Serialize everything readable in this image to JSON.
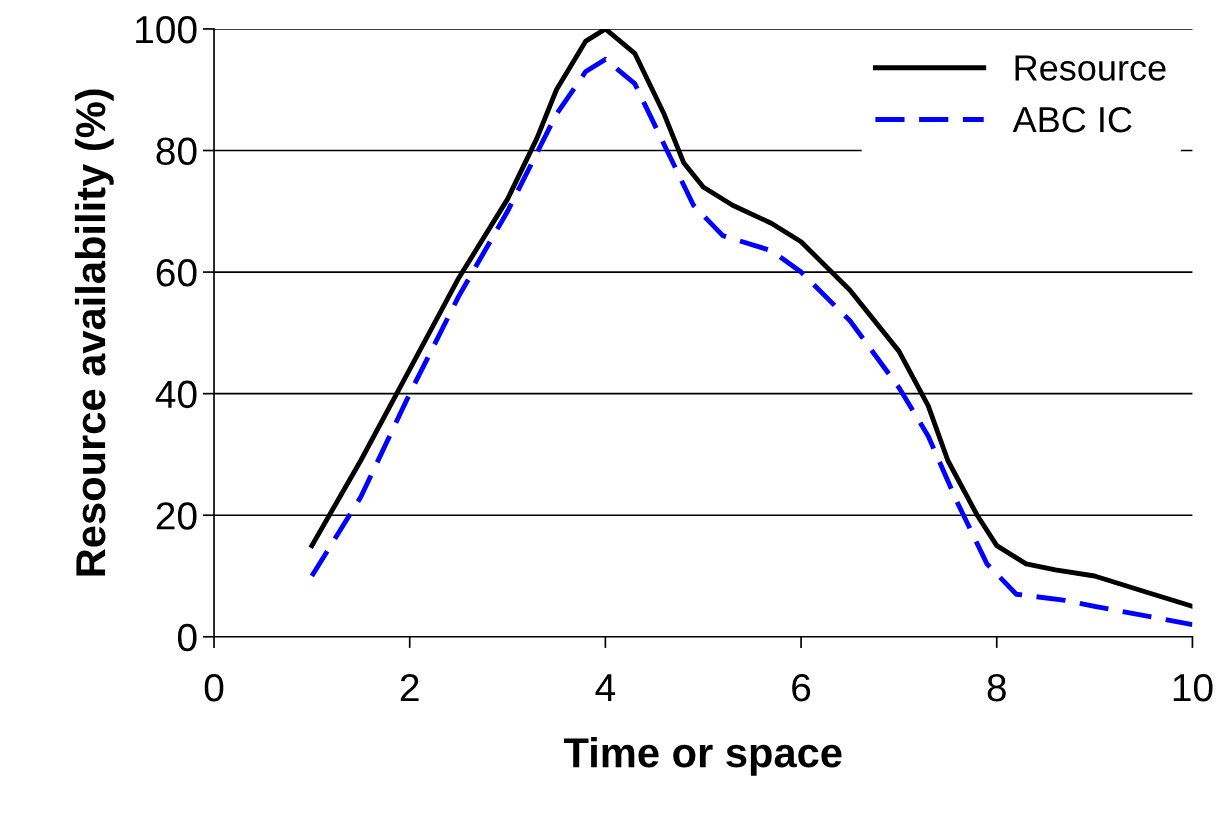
{
  "chart_data": {
    "type": "line",
    "xlabel": "Time or space",
    "ylabel": "Resource availability (%)",
    "xlim": [
      0,
      10
    ],
    "xticks": [
      0,
      2,
      4,
      6,
      8,
      10
    ],
    "ylim": [
      0,
      100
    ],
    "yticks": [
      0,
      20,
      40,
      60,
      80,
      100
    ],
    "grid": "y",
    "legend": "top right",
    "marker": "none",
    "series": [
      {
        "name": "Resource",
        "color": "#000000",
        "line_style": "solid",
        "x": [
          1,
          1.5,
          2,
          2.5,
          3,
          3.3,
          3.5,
          3.8,
          4,
          4.3,
          4.6,
          4.8,
          5,
          5.3,
          5.7,
          6,
          6.5,
          7,
          7.3,
          7.5,
          7.8,
          8,
          8.3,
          8.6,
          9,
          9.5,
          10
        ],
        "values": [
          15,
          29,
          44,
          59,
          72,
          82,
          90,
          98,
          100,
          96,
          86,
          78,
          74,
          71,
          68,
          65,
          57,
          47,
          38,
          29,
          20,
          15,
          12,
          11,
          10,
          7.5,
          5
        ]
      },
      {
        "name": "ABC IC",
        "color": "#0000ff",
        "line_style": "dashed",
        "x": [
          1,
          1.5,
          2,
          2.5,
          3,
          3.5,
          3.8,
          4,
          4.3,
          4.6,
          4.9,
          5.2,
          5.7,
          6,
          6.5,
          7,
          7.3,
          7.6,
          7.9,
          8.2,
          8.7,
          9,
          10
        ],
        "values": [
          10,
          23,
          40,
          56,
          70,
          86,
          93,
          95,
          91,
          81,
          71,
          66,
          63.5,
          60,
          52,
          41,
          33,
          22,
          12,
          7,
          6,
          5,
          2
        ]
      }
    ]
  }
}
